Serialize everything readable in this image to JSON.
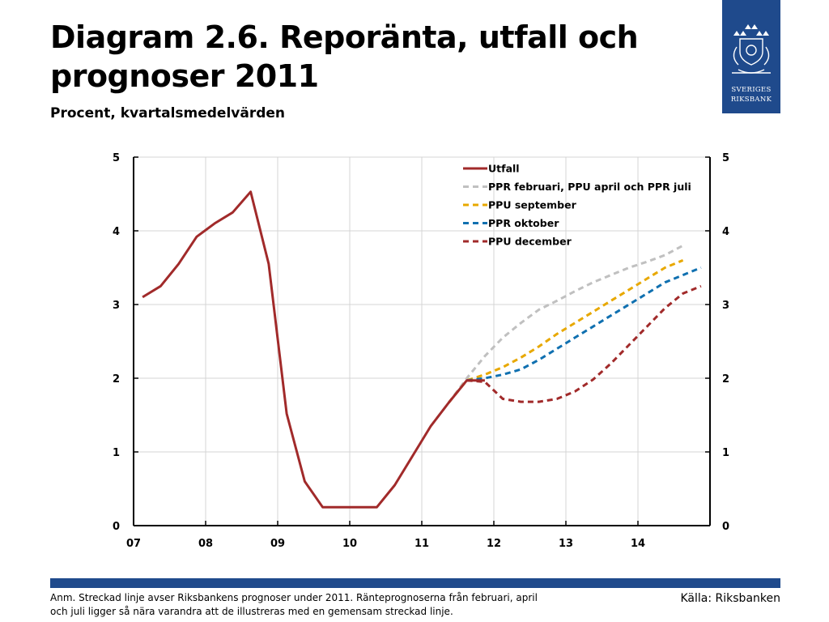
{
  "title": "Diagram 2.6. Reporänta, utfall och prognoser 2011",
  "subtitle": "Procent, kvartalsmedelvärden",
  "logo": {
    "line1": "SVERIGES",
    "line2": "RIKSBANK"
  },
  "note": "Anm. Streckad linje avser Riksbankens prognoser under 2011. Ränteprognoserna från februari, april och juli ligger så nära varandra att de illustreras med en gemensam streckad linje.",
  "source": "Källa: Riksbanken",
  "colors": {
    "brand": "#1f4a8c",
    "utfall": "#a12a2a",
    "ppr_feb": "#c0c0c0",
    "ppu_sep": "#e8a800",
    "ppr_okt": "#1070b0",
    "ppu_dec": "#a12a2a"
  },
  "chart_data": {
    "type": "line",
    "x_ticks": [
      "07",
      "08",
      "09",
      "10",
      "11",
      "12",
      "13",
      "14"
    ],
    "y_ticks": [
      0,
      1,
      2,
      3,
      4,
      5
    ],
    "ylim": [
      0,
      5
    ],
    "xlim": [
      2007.0,
      2015.0
    ],
    "grid": true,
    "legend_position": "top-center",
    "series": [
      {
        "name": "Utfall",
        "style": "solid",
        "color_key": "utfall",
        "x": [
          2007.125,
          2007.375,
          2007.625,
          2007.875,
          2008.125,
          2008.375,
          2008.625,
          2008.875,
          2009.125,
          2009.375,
          2009.625,
          2009.875,
          2010.125,
          2010.375,
          2010.625,
          2010.875,
          2011.125,
          2011.375,
          2011.625,
          2011.875
        ],
        "y": [
          3.1,
          3.25,
          3.55,
          3.92,
          4.1,
          4.25,
          4.53,
          3.55,
          1.52,
          0.6,
          0.25,
          0.25,
          0.25,
          0.25,
          0.55,
          0.95,
          1.35,
          1.67,
          1.97,
          1.97
        ]
      },
      {
        "name": "PPR februari, PPU april och PPR juli",
        "style": "dashed",
        "color_key": "ppr_feb",
        "x": [
          2011.125,
          2011.375,
          2011.625,
          2011.875,
          2012.125,
          2012.375,
          2012.625,
          2012.875,
          2013.125,
          2013.375,
          2013.625,
          2013.875,
          2014.125,
          2014.375,
          2014.625
        ],
        "y": [
          1.35,
          1.67,
          2.0,
          2.3,
          2.55,
          2.75,
          2.93,
          3.05,
          3.18,
          3.3,
          3.4,
          3.5,
          3.58,
          3.67,
          3.8
        ]
      },
      {
        "name": "PPU september",
        "style": "dashed",
        "color_key": "ppu_sep",
        "x": [
          2011.375,
          2011.625,
          2011.875,
          2012.125,
          2012.375,
          2012.625,
          2012.875,
          2013.125,
          2013.375,
          2013.625,
          2013.875,
          2014.125,
          2014.375,
          2014.625
        ],
        "y": [
          1.67,
          1.97,
          2.05,
          2.15,
          2.28,
          2.43,
          2.6,
          2.75,
          2.9,
          3.05,
          3.2,
          3.35,
          3.5,
          3.6
        ]
      },
      {
        "name": "PPR oktober",
        "style": "dashed",
        "color_key": "ppr_okt",
        "x": [
          2011.625,
          2011.875,
          2012.125,
          2012.375,
          2012.625,
          2012.875,
          2013.125,
          2013.375,
          2013.625,
          2013.875,
          2014.125,
          2014.375,
          2014.625,
          2014.875
        ],
        "y": [
          1.97,
          2.0,
          2.05,
          2.12,
          2.25,
          2.4,
          2.55,
          2.7,
          2.85,
          3.0,
          3.15,
          3.3,
          3.4,
          3.5
        ]
      },
      {
        "name": "PPU december",
        "style": "dashed",
        "color_key": "ppu_dec",
        "x": [
          2011.625,
          2011.875,
          2012.125,
          2012.375,
          2012.625,
          2012.875,
          2013.125,
          2013.375,
          2013.625,
          2013.875,
          2014.125,
          2014.375,
          2014.625,
          2014.875
        ],
        "y": [
          1.97,
          1.95,
          1.72,
          1.68,
          1.68,
          1.72,
          1.82,
          1.98,
          2.2,
          2.45,
          2.7,
          2.95,
          3.15,
          3.25
        ]
      }
    ]
  }
}
